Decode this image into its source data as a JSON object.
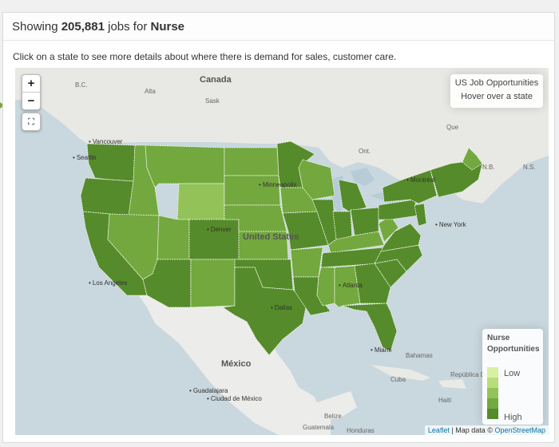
{
  "header": {
    "prefix": "Showing",
    "count": "205,881",
    "middle": "jobs for",
    "query": "Nurse"
  },
  "subtitle": "Click on a state to see more details about where there is demand for sales, customer care.",
  "map": {
    "zoom_in": "+",
    "zoom_out": "−",
    "fullscreen": "⛶",
    "info": {
      "title": "US Job Opportunities",
      "hint": "Hover over a state"
    },
    "legend": {
      "title_line1": "Nurse",
      "title_line2": "Opportunities",
      "low": "Low",
      "high": "High",
      "colors": [
        "#d9f0a3",
        "#b8dd7a",
        "#93c358",
        "#72a83d",
        "#558b2a"
      ]
    },
    "attribution": {
      "leaflet": "Leaflet",
      "sep": " | Map data © ",
      "osm": "OpenStreetMap"
    },
    "labels": {
      "canada": "Canada",
      "usa": "United States",
      "mexico": "México",
      "bc": "B.C.",
      "alta": "Alta",
      "sask": "Sask",
      "que": "Que",
      "ont": "Ont.",
      "nb": "N.B.",
      "ns": "N.S.",
      "bahamas": "Bahamas",
      "cuba": "Cuba",
      "haiti": "Haiti",
      "dominican": "República Dominicana",
      "belize": "Belize",
      "guatemala": "Guatemala",
      "honduras": "Honduras"
    },
    "cities": {
      "vancouver": "Vancouver",
      "seattle": "Seattle",
      "montreal": "Montréal",
      "minneapolis": "Minneapolis",
      "newyork": "New York",
      "losangeles": "Los Angeles",
      "denver": "Denver",
      "dallas": "Dallas",
      "atlanta": "Atlanta",
      "miami": "Miami",
      "guadalajara": "Guadalajara",
      "ciudad": "Ciudad de México"
    }
  }
}
